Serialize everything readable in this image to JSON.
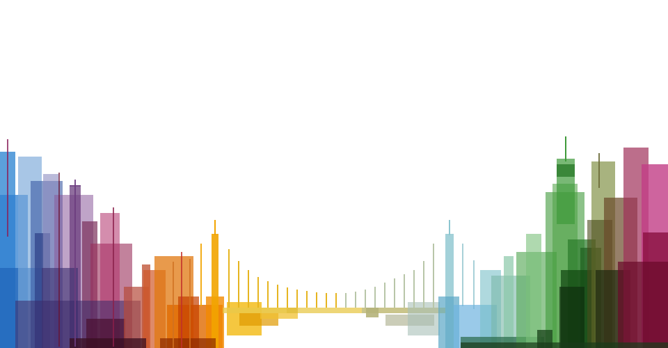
{
  "scene": {
    "subject": "skyline-bridge-illustration",
    "background": "#ffffff",
    "palette": {
      "blue": "#2f7fd0",
      "navy": "#2e3f86",
      "purple": "#6b3d7e",
      "magenta": "#b0306a",
      "maroon": "#6a1230",
      "orange": "#e07810",
      "amber": "#f2a400",
      "yellow": "#e7c23a",
      "olive": "#b5b27a",
      "teal": "#8cc6d0",
      "sky": "#6fb3e0",
      "green": "#3f9a3a",
      "darkgreen": "#1f5e1f",
      "brown": "#6b4a2a",
      "pink": "#c23d86",
      "wine": "#7a0e3a"
    }
  }
}
